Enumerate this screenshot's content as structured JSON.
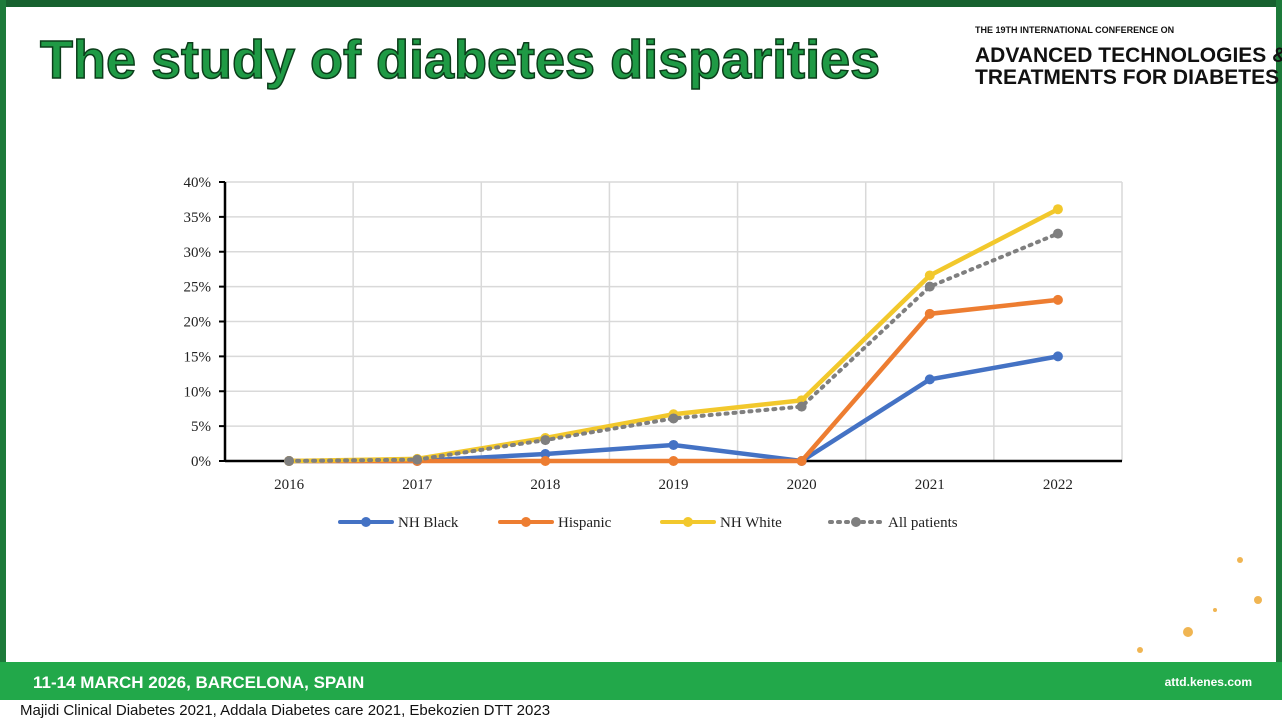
{
  "header": {
    "title": "The study of diabetes disparities",
    "conference_line": "THE 19TH INTERNATIONAL CONFERENCE ON",
    "logo_line1": "ADVANCED TECHNOLOGIES &",
    "logo_line2": "TREATMENTS FOR DIABETES"
  },
  "footer": {
    "event": "11-14 MARCH 2026, BARCELONA, SPAIN",
    "website": "attd.kenes.com",
    "citation": "Majidi Clinical Diabetes 2021, Addala Diabetes care 2021, Ebekozien DTT 2023"
  },
  "chart_data": {
    "type": "line",
    "categories": [
      "2016",
      "2017",
      "2018",
      "2019",
      "2020",
      "2021",
      "2022"
    ],
    "series": [
      {
        "name": "NH Black",
        "color": "#4472c4",
        "line_style": "solid",
        "values": [
          0,
          0,
          1,
          2.3,
          0,
          11.7,
          15
        ]
      },
      {
        "name": "Hispanic",
        "color": "#ed7d31",
        "line_style": "solid",
        "values": [
          0,
          0,
          0,
          0,
          0,
          21.1,
          23.1
        ]
      },
      {
        "name": "NH White",
        "color": "#f2c82c",
        "line_style": "solid",
        "values": [
          0,
          0.3,
          3.3,
          6.7,
          8.7,
          26.6,
          36.1
        ]
      },
      {
        "name": "All patients",
        "color": "#7f7f7f",
        "line_style": "dotted",
        "values": [
          0,
          0.2,
          3,
          6.1,
          7.8,
          25,
          32.6
        ]
      }
    ],
    "ylim": [
      0,
      40
    ],
    "yticks": [
      {
        "value": 0,
        "label": "0%"
      },
      {
        "value": 5,
        "label": "5%"
      },
      {
        "value": 10,
        "label": "10%"
      },
      {
        "value": 15,
        "label": "15%"
      },
      {
        "value": 20,
        "label": "20%"
      },
      {
        "value": 25,
        "label": "25%"
      },
      {
        "value": 30,
        "label": "30%"
      },
      {
        "value": 35,
        "label": "35%"
      },
      {
        "value": 40,
        "label": "40%"
      }
    ],
    "grid": true,
    "legend": "bottom"
  }
}
